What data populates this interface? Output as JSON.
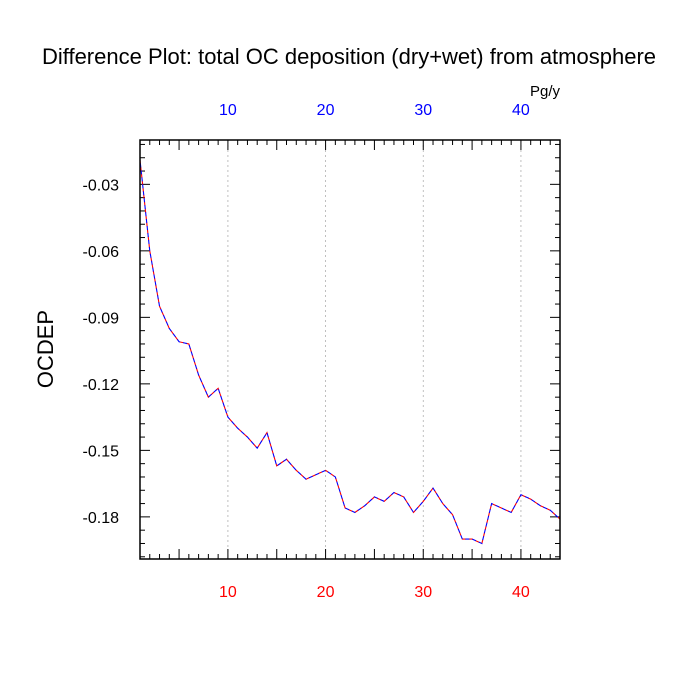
{
  "chart_data": {
    "type": "line",
    "title": "Difference Plot: total OC deposition (dry+wet) from atmosphere",
    "units": "Pg/y",
    "ylabel": "OCDEP",
    "xlabel": "",
    "xlim": [
      1,
      44
    ],
    "ylim": [
      -0.199,
      -0.01
    ],
    "x_ticks": [
      10,
      20,
      30,
      40
    ],
    "x_tick_labels": [
      "10",
      "20",
      "30",
      "40"
    ],
    "y_ticks": [
      -0.03,
      -0.06,
      -0.09,
      -0.12,
      -0.15,
      -0.18
    ],
    "y_tick_labels": [
      "-0.03",
      "-0.06",
      "-0.09",
      "-0.12",
      "-0.15",
      "-0.18"
    ],
    "grid": "vertical dashed at x ticks",
    "colors": {
      "top_tick_labels": "#0000ff",
      "bottom_tick_labels": "#ff0000",
      "series_line_a": "#ff0000",
      "series_line_b": "#0000ff"
    },
    "x": [
      1,
      2,
      3,
      4,
      5,
      6,
      7,
      8,
      9,
      10,
      11,
      12,
      13,
      14,
      15,
      16,
      17,
      18,
      19,
      20,
      21,
      22,
      23,
      24,
      25,
      26,
      27,
      28,
      29,
      30,
      31,
      32,
      33,
      34,
      35,
      36,
      37,
      38,
      39,
      40,
      41,
      42,
      43,
      44
    ],
    "series": [
      {
        "values": [
          -0.019,
          -0.06,
          -0.085,
          -0.095,
          -0.101,
          -0.102,
          -0.116,
          -0.126,
          -0.122,
          -0.135,
          -0.14,
          -0.144,
          -0.149,
          -0.142,
          -0.157,
          -0.154,
          -0.159,
          -0.163,
          -0.161,
          -0.159,
          -0.162,
          -0.176,
          -0.178,
          -0.175,
          -0.171,
          -0.173,
          -0.169,
          -0.171,
          -0.178,
          -0.173,
          -0.167,
          -0.174,
          -0.179,
          -0.19,
          -0.19,
          -0.192,
          -0.174,
          -0.176,
          -0.178,
          -0.17,
          -0.172,
          -0.175,
          -0.177,
          -0.181
        ]
      }
    ]
  }
}
